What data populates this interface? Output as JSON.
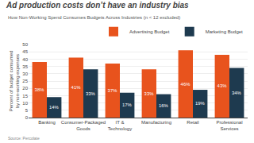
{
  "chart_data": {
    "type": "bar",
    "title": "Ad production costs don’t have an industry bias",
    "subtitle": "How Non-Working Spend Consumes Budgets Across Industries (n < 12 excluded)",
    "source": "Source: Percolate",
    "ylabel": "Percent of budget consumed by non-working expenses",
    "categories": [
      "Banking",
      "Consumer-Packaged Goods",
      "IT & Technology",
      "Manufacturing",
      "Retail",
      "Professional Services"
    ],
    "series": [
      {
        "name": "Advertising Budget",
        "color": "#E8531D",
        "values": [
          38,
          41,
          37,
          33,
          46,
          43
        ],
        "value_labels": [
          "38%",
          "41%",
          "37%",
          "33%",
          "46%",
          "43%"
        ]
      },
      {
        "name": "Marketing Budget",
        "color": "#1E3A4F",
        "values": [
          14,
          33,
          17,
          16,
          19,
          34
        ],
        "value_labels": [
          "14%",
          "33%",
          "17%",
          "16%",
          "19%",
          "34%"
        ]
      }
    ],
    "ylim": [
      0,
      50
    ],
    "yticks": [
      0,
      5,
      10,
      15,
      20,
      25,
      30,
      35,
      40,
      45,
      50
    ],
    "grid": true,
    "legend": "upper right",
    "data_labels": true
  }
}
